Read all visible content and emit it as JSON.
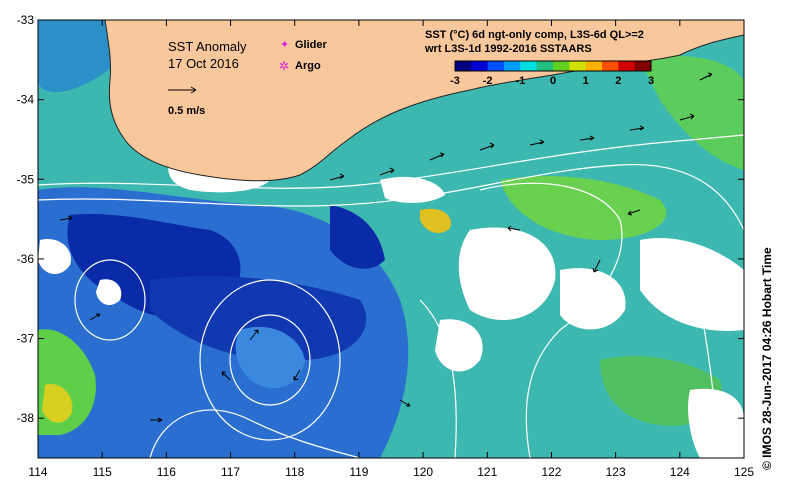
{
  "title": {
    "line1": "SST Anomaly",
    "line2": "17 Oct 2016"
  },
  "legend_markers": [
    {
      "label": "Glider",
      "symbol": "✦",
      "color": "#e020e0"
    },
    {
      "label": "Argo",
      "symbol": "✲",
      "color": "#e020e0"
    }
  ],
  "velocity_scale": {
    "label": "0.5 m/s"
  },
  "colorbar": {
    "caption_line1": "SST (°C) 6d ngt-only comp, L3S-6d QL>=2",
    "caption_line2": "wrt L3S-1d 1992-2016 SSTAARS",
    "min": -3,
    "max": 3,
    "ticks": [
      "-3",
      "-2",
      "-1",
      "0",
      "1",
      "2",
      "3"
    ],
    "colors": [
      "#000080",
      "#0000d0",
      "#0050ff",
      "#00a0ff",
      "#00e0e0",
      "#20c080",
      "#60d020",
      "#d0e000",
      "#ffb000",
      "#ff5000",
      "#d00000",
      "#800000"
    ]
  },
  "axes": {
    "lon": {
      "min": 114,
      "max": 125,
      "ticks": [
        "114",
        "115",
        "116",
        "117",
        "118",
        "119",
        "120",
        "121",
        "122",
        "123",
        "124",
        "125"
      ]
    },
    "lat": {
      "min": -38.5,
      "max": -33,
      "ticks": [
        "-33",
        "-34",
        "-35",
        "-36",
        "-37",
        "-38"
      ]
    }
  },
  "land_color": "#f8c89c",
  "credit": "© IMOS 28-Jun-2017 04:26 Hobart Time"
}
